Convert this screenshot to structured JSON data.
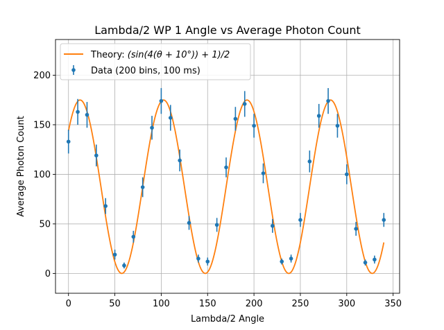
{
  "chart_data": {
    "type": "scatter",
    "title": "Lambda/2 WP 1 Angle vs Average Photon Count",
    "xlabel": "Lambda/2 Angle",
    "ylabel": "Average Photon Count",
    "xlim": [
      -14,
      357
    ],
    "ylim": [
      -20,
      236
    ],
    "xticks": [
      0,
      50,
      100,
      150,
      200,
      250,
      300,
      350
    ],
    "yticks": [
      0,
      50,
      100,
      150,
      200
    ],
    "grid": true,
    "legend_position": "top-left",
    "series": [
      {
        "name": "Theory",
        "kind": "line",
        "color": "#ff7f0e",
        "formula": "175*(sin(4*(theta+10 deg))+1)/2",
        "amplitude": 175,
        "x_range": [
          0,
          340
        ]
      },
      {
        "name": "Data (200 bins, 100 ms)",
        "kind": "errorbar",
        "color": "#1f77b4",
        "x": [
          0,
          10,
          20,
          30,
          40,
          50,
          60,
          70,
          80,
          90,
          100,
          110,
          120,
          130,
          140,
          150,
          160,
          170,
          180,
          190,
          200,
          210,
          220,
          230,
          240,
          250,
          260,
          270,
          280,
          290,
          300,
          310,
          320,
          330,
          340
        ],
        "y": [
          133,
          163,
          160,
          119,
          68,
          19,
          8,
          37,
          87,
          147,
          174,
          157,
          114,
          51,
          15,
          12,
          49,
          107,
          156,
          171,
          149,
          101,
          48,
          12,
          15,
          54,
          113,
          159,
          174,
          149,
          100,
          45,
          11,
          14,
          54
        ],
        "yerr": [
          12,
          13,
          13,
          11,
          8,
          5,
          3,
          6,
          10,
          12,
          13,
          13,
          11,
          7,
          4,
          4,
          7,
          10,
          12,
          13,
          12,
          10,
          7,
          3,
          4,
          7,
          11,
          12,
          13,
          12,
          10,
          7,
          3,
          4,
          7
        ]
      }
    ],
    "legend": [
      {
        "label_text": "Theory: ",
        "label_math": "(sin(4(θ + 10°)) + 1)/2",
        "marker": "line"
      },
      {
        "label_text": "Data (200 bins, 100 ms)",
        "label_math": "",
        "marker": "errorbar-point"
      }
    ]
  }
}
